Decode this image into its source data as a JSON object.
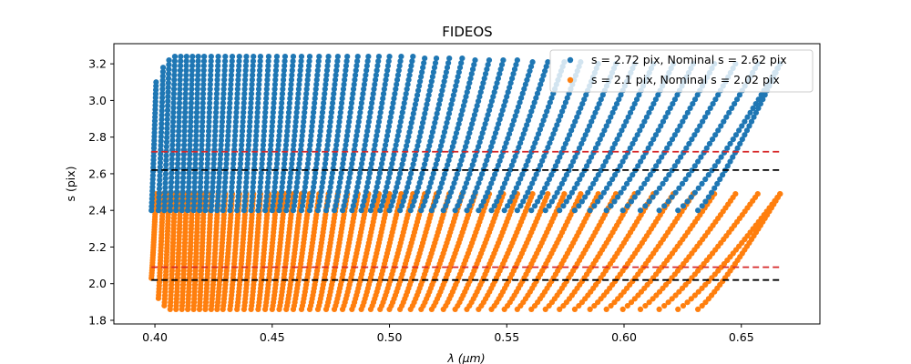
{
  "chart_data": {
    "type": "scatter",
    "title": "FIDEOS",
    "xlabel": "λ (μm)",
    "ylabel": "s (pix)",
    "xlim": [
      0.3825,
      0.6835
    ],
    "ylim": [
      1.78,
      3.31
    ],
    "xticks": [
      0.4,
      0.45,
      0.5,
      0.55,
      0.6,
      0.65
    ],
    "xtick_labels": [
      "0.40",
      "0.45",
      "0.50",
      "0.55",
      "0.60",
      "0.65"
    ],
    "yticks": [
      1.8,
      2.0,
      2.2,
      2.4,
      2.6,
      2.8,
      3.0,
      3.2
    ],
    "ytick_labels": [
      "1.8",
      "2.0",
      "2.2",
      "2.4",
      "2.6",
      "2.8",
      "3.0",
      "3.2"
    ],
    "grid": false,
    "legend_position": "top-right",
    "series": [
      {
        "name": "s = 2.72 pix, Nominal s = 2.62 pix",
        "color": "#1f77b4",
        "s_min": 2.4,
        "order_tops": [
          3.1,
          3.18,
          3.22,
          3.24,
          3.24,
          3.24,
          3.24,
          3.24,
          3.24,
          3.24,
          3.24,
          3.24,
          3.24,
          3.24,
          3.24,
          3.24,
          3.24,
          3.24,
          3.24,
          3.24,
          3.24,
          3.24,
          3.24,
          3.24,
          3.24,
          3.24,
          3.24,
          3.24,
          3.24,
          3.24,
          3.24,
          3.24,
          3.24,
          3.23,
          3.23,
          3.23,
          3.23,
          3.22,
          3.22,
          3.22,
          3.22,
          3.21,
          3.21,
          3.21,
          3.21,
          3.2,
          3.2,
          3.2,
          3.2,
          3.2,
          3.2,
          3.2,
          3.2,
          3.2,
          3.2,
          3.2
        ]
      },
      {
        "name": "s = 2.1 pix, Nominal s = 2.02 pix",
        "color": "#ff7f0e",
        "s_max": 2.49,
        "order_bottoms": [
          2.03,
          1.92,
          1.88,
          1.86,
          1.86,
          1.86,
          1.86,
          1.86,
          1.86,
          1.86,
          1.86,
          1.86,
          1.86,
          1.86,
          1.86,
          1.86,
          1.86,
          1.86,
          1.86,
          1.86,
          1.86,
          1.86,
          1.86,
          1.86,
          1.86,
          1.86,
          1.86,
          1.86,
          1.86,
          1.86,
          1.86,
          1.86,
          1.86,
          1.86,
          1.86,
          1.86,
          1.86,
          1.86,
          1.86,
          1.86,
          1.86,
          1.86,
          1.86,
          1.86,
          1.86,
          1.86,
          1.86,
          1.86,
          1.86,
          1.86,
          1.86,
          1.86,
          1.86,
          1.86,
          1.86,
          1.86
        ]
      }
    ],
    "order_lambda_start": [
      0.3985,
      0.4015,
      0.404,
      0.4065,
      0.409,
      0.4115,
      0.414,
      0.4165,
      0.419,
      0.4215,
      0.424,
      0.4265,
      0.429,
      0.432,
      0.435,
      0.438,
      0.441,
      0.444,
      0.447,
      0.45,
      0.453,
      0.456,
      0.459,
      0.4625,
      0.466,
      0.4695,
      0.473,
      0.4765,
      0.48,
      0.484,
      0.488,
      0.492,
      0.496,
      0.5,
      0.5045,
      0.509,
      0.5135,
      0.518,
      0.523,
      0.528,
      0.533,
      0.538,
      0.5435,
      0.549,
      0.5545,
      0.5605,
      0.5665,
      0.5725,
      0.579,
      0.5855,
      0.5925,
      0.5995,
      0.607,
      0.615,
      0.623,
      0.6315
    ],
    "order_lambda_end": [
      0.4005,
      0.4035,
      0.406,
      0.4085,
      0.411,
      0.4135,
      0.416,
      0.4185,
      0.421,
      0.424,
      0.427,
      0.43,
      0.433,
      0.436,
      0.439,
      0.442,
      0.445,
      0.4485,
      0.452,
      0.4555,
      0.459,
      0.4625,
      0.466,
      0.47,
      0.474,
      0.478,
      0.482,
      0.4865,
      0.491,
      0.4955,
      0.5,
      0.505,
      0.51,
      0.515,
      0.52,
      0.5255,
      0.531,
      0.5365,
      0.5425,
      0.5485,
      0.5545,
      0.561,
      0.5675,
      0.5745,
      0.5815,
      0.589,
      0.5965,
      0.6045,
      0.6125,
      0.621,
      0.6295,
      0.6385,
      0.6475,
      0.657,
      0.6665,
      0.6665
    ],
    "hlines": [
      {
        "y": 2.72,
        "color": "#d62728",
        "style": "dashed",
        "x_range": [
          0.3985,
          0.6665
        ]
      },
      {
        "y": 2.62,
        "color": "#000000",
        "style": "dashed",
        "x_range": [
          0.3985,
          0.6665
        ]
      },
      {
        "y": 2.09,
        "color": "#d62728",
        "style": "dashed",
        "x_range": [
          0.3985,
          0.6665
        ]
      },
      {
        "y": 2.02,
        "color": "#000000",
        "style": "dashed",
        "x_range": [
          0.3985,
          0.6665
        ]
      }
    ]
  }
}
